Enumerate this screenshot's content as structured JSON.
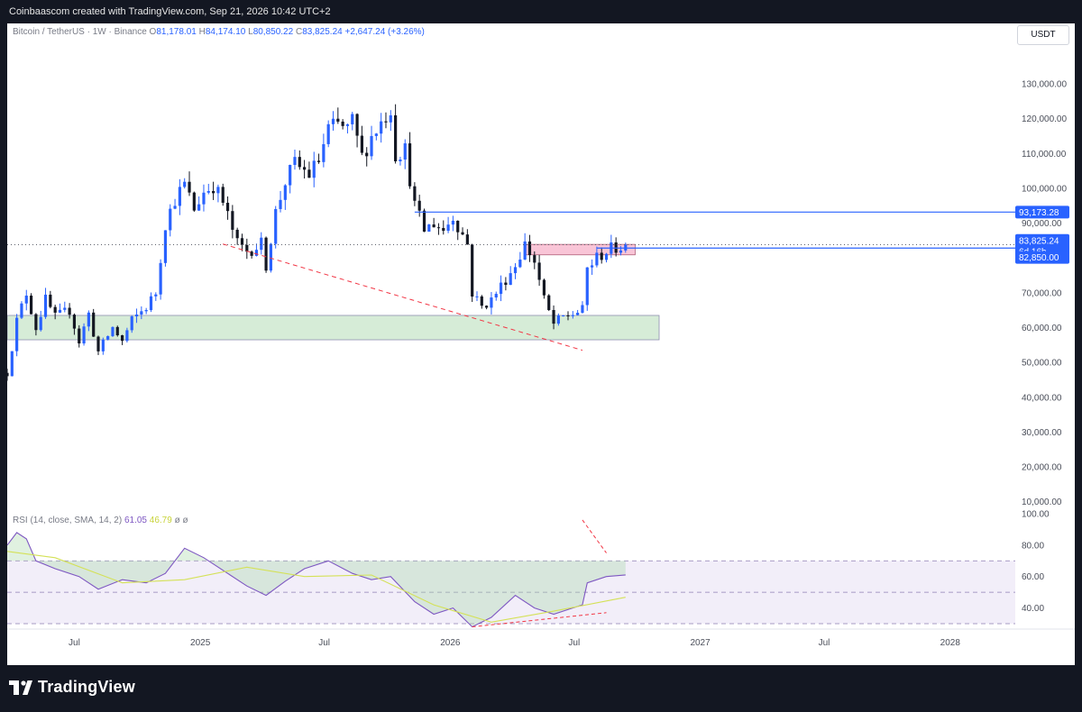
{
  "header": {
    "text": "Coinbaascom created with TradingView.com, Sep 21, 2026 10:42 UTC+2"
  },
  "legend": {
    "symbol": "Bitcoin / TetherUS · 1W · Binance",
    "o_label": "O",
    "o_value": "81,178.01",
    "h_label": "H",
    "h_value": "84,174.10",
    "l_label": "L",
    "l_value": "80,850.22",
    "c_label": "C",
    "c_value": "83,825.24",
    "change": "+2,647.24 (+3.26%)"
  },
  "currency_button": "USDT",
  "rsi_legend": {
    "label": "RSI (14, close, SMA, 14, 2)",
    "rsi_value": "61.05",
    "sma_value": "46.79",
    "extra1": "ø",
    "extra2": "ø"
  },
  "price_labels": {
    "level": "93,173.28",
    "last": "83,825.24",
    "countdown": "6d 16h",
    "support": "82,850.00"
  },
  "brand": {
    "name": "TradingView"
  },
  "colors": {
    "up": "#2962ff",
    "down": "#131722",
    "level": "#2962ff",
    "trend": "#f23645",
    "support_zone": "#c8e6c9",
    "resistance_zone": "#f8bbd0",
    "rsi": "#7e57c2",
    "rsi_sma": "#d4e157"
  },
  "chart_data": [
    {
      "type": "candlestick",
      "y_axis_ticks": [
        "130,000.00",
        "120,000.00",
        "110,000.00",
        "100,000.00",
        "90,000.00",
        "70,000.00",
        "60,000.00",
        "50,000.00",
        "40,000.00",
        "30,000.00",
        "20,000.00",
        "10,000.00"
      ],
      "ylim": [
        5000,
        137000
      ],
      "x_axis_ticks": [
        "Jul",
        "2025",
        "Jul",
        "2026",
        "Jul",
        "2027",
        "Jul",
        "2028"
      ],
      "xlim": [
        "2024-03-25",
        "2028-07-01"
      ],
      "series_path": [
        [
          "2024-03-25",
          47000
        ],
        [
          "2024-04-08",
          62000
        ],
        [
          "2024-04-22",
          70000
        ],
        [
          "2024-05-06",
          60000
        ],
        [
          "2024-05-20",
          68000
        ],
        [
          "2024-06-03",
          63000
        ],
        [
          "2024-06-24",
          65000
        ],
        [
          "2024-07-08",
          56000
        ],
        [
          "2024-07-22",
          64000
        ],
        [
          "2024-08-05",
          53000
        ],
        [
          "2024-08-26",
          60000
        ],
        [
          "2024-09-09",
          56000
        ],
        [
          "2024-09-23",
          62000
        ],
        [
          "2024-10-14",
          66000
        ],
        [
          "2024-10-28",
          70000
        ],
        [
          "2024-11-11",
          90000
        ],
        [
          "2024-11-25",
          97000
        ],
        [
          "2024-12-09",
          101000
        ],
        [
          "2024-12-23",
          94000
        ],
        [
          "2025-01-06",
          99000
        ],
        [
          "2025-01-20",
          101000
        ],
        [
          "2025-02-03",
          96000
        ],
        [
          "2025-02-24",
          84000
        ],
        [
          "2025-03-10",
          82000
        ],
        [
          "2025-03-31",
          84000
        ],
        [
          "2025-04-07",
          78000
        ],
        [
          "2025-04-21",
          93000
        ],
        [
          "2025-05-05",
          102000
        ],
        [
          "2025-05-19",
          107000
        ],
        [
          "2025-06-09",
          104000
        ],
        [
          "2025-06-23",
          108000
        ],
        [
          "2025-07-07",
          117000
        ],
        [
          "2025-07-21",
          118000
        ],
        [
          "2025-08-04",
          117000
        ],
        [
          "2025-08-11",
          119000
        ],
        [
          "2025-08-25",
          109000
        ],
        [
          "2025-09-08",
          115000
        ],
        [
          "2025-10-06",
          123000
        ],
        [
          "2025-10-13",
          110000
        ],
        [
          "2025-10-27",
          111000
        ],
        [
          "2025-11-10",
          95000
        ],
        [
          "2025-11-24",
          88000
        ],
        [
          "2025-12-08",
          90000
        ],
        [
          "2025-12-22",
          88000
        ],
        [
          "2026-01-05",
          92000
        ],
        [
          "2026-01-26",
          84000
        ],
        [
          "2026-02-02",
          70000
        ],
        [
          "2026-02-16",
          66000
        ],
        [
          "2026-03-02",
          68000
        ],
        [
          "2026-03-16",
          72000
        ],
        [
          "2026-04-06",
          78000
        ],
        [
          "2026-04-20",
          84000
        ],
        [
          "2026-05-04",
          79000
        ],
        [
          "2026-05-18",
          68000
        ],
        [
          "2026-06-01",
          61000
        ],
        [
          "2026-06-15",
          63000
        ],
        [
          "2026-06-29",
          64000
        ],
        [
          "2026-07-13",
          65000
        ],
        [
          "2026-07-20",
          77000
        ],
        [
          "2026-08-03",
          80000
        ],
        [
          "2026-08-17",
          82000
        ],
        [
          "2026-09-14",
          83825.24
        ]
      ],
      "horizontal_levels": [
        93173.28,
        83825.24,
        82850.0
      ],
      "support_zone": {
        "x": [
          "2024-03-25",
          "2026-11-02"
        ],
        "y": [
          56500,
          63500
        ]
      },
      "resistance_zone": {
        "x": [
          "2026-04-20",
          "2026-09-28"
        ],
        "y": [
          80900,
          83900
        ]
      },
      "trendlines": [
        {
          "from": [
            "2025-02-03",
            84000
          ],
          "to": [
            "2026-07-13",
            53500
          ]
        }
      ]
    },
    {
      "type": "line",
      "title": "RSI (14, close, SMA, 14, 2)",
      "y_axis_ticks": [
        "100.00",
        "80.00",
        "60.00",
        "40.00"
      ],
      "ylim": [
        30,
        100
      ],
      "bands": [
        70,
        50,
        30
      ],
      "series": [
        {
          "name": "RSI",
          "x": [
            "2024-03-25",
            "2024-04-08",
            "2024-04-22",
            "2024-05-06",
            "2024-06-03",
            "2024-07-08",
            "2024-08-05",
            "2024-09-09",
            "2024-10-14",
            "2024-11-11",
            "2024-12-09",
            "2025-01-06",
            "2025-02-10",
            "2025-03-10",
            "2025-04-07",
            "2025-05-05",
            "2025-06-02",
            "2025-07-07",
            "2025-08-11",
            "2025-09-08",
            "2025-10-06",
            "2025-11-10",
            "2025-12-08",
            "2026-01-05",
            "2026-02-02",
            "2026-03-02",
            "2026-04-06",
            "2026-05-04",
            "2026-06-01",
            "2026-07-13",
            "2026-07-20",
            "2026-08-17",
            "2026-09-14"
          ],
          "values": [
            80,
            88,
            84,
            70,
            65,
            60,
            52,
            58,
            56,
            62,
            78,
            72,
            62,
            54,
            48,
            57,
            65,
            70,
            62,
            58,
            60,
            44,
            36,
            40,
            28,
            34,
            48,
            40,
            36,
            42,
            56,
            60,
            61.05
          ]
        },
        {
          "name": "SMA",
          "x": [
            "2024-03-25",
            "2024-06-03",
            "2024-09-09",
            "2024-12-09",
            "2025-03-10",
            "2025-06-02",
            "2025-09-08",
            "2025-12-08",
            "2026-03-02",
            "2026-06-01",
            "2026-09-14"
          ],
          "values": [
            76,
            72,
            56,
            58,
            66,
            60,
            61,
            42,
            31,
            38,
            46.79
          ]
        }
      ]
    }
  ]
}
